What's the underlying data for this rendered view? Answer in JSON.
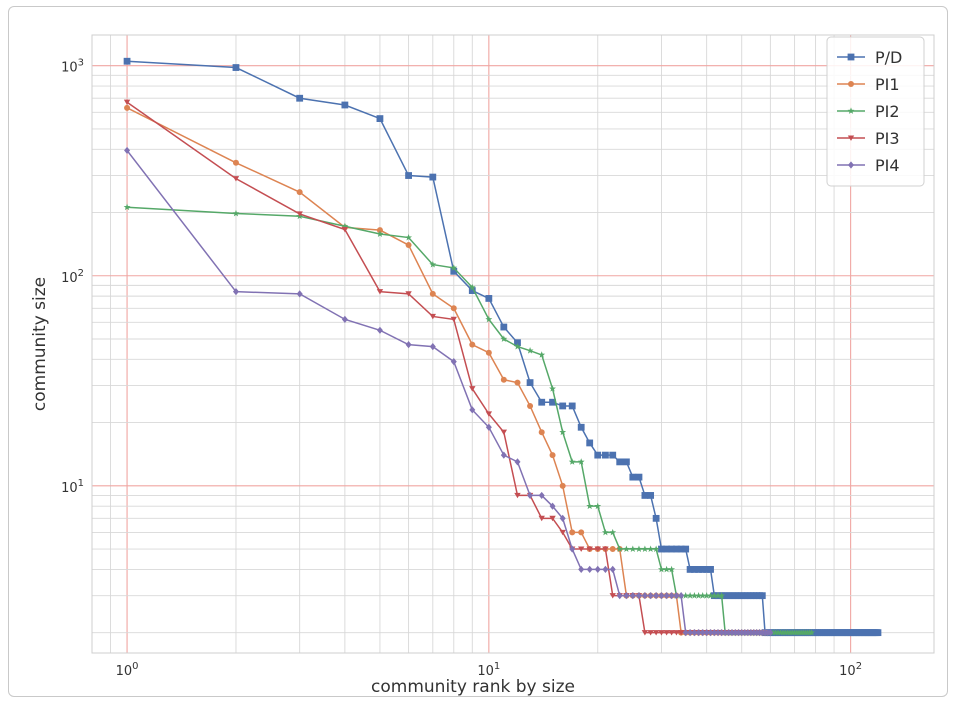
{
  "chart_data": {
    "type": "line",
    "xscale": "log",
    "yscale": "log",
    "xlim": [
      0.8,
      170
    ],
    "ylim": [
      1.6,
      1400
    ],
    "xlabel": "community rank by size",
    "ylabel": "community size",
    "xticks": [
      {
        "value": 1,
        "base": "10",
        "exp": "0"
      },
      {
        "value": 10,
        "base": "10",
        "exp": "1"
      },
      {
        "value": 100,
        "base": "10",
        "exp": "2"
      }
    ],
    "yticks": [
      {
        "value": 10,
        "base": "10",
        "exp": "1"
      },
      {
        "value": 100,
        "base": "10",
        "exp": "2"
      },
      {
        "value": 1000,
        "base": "10",
        "exp": "3"
      }
    ],
    "grid": true,
    "legend_position": "top-right",
    "series": [
      {
        "name": "P/D",
        "color": "#4c72b0",
        "marker": "square",
        "tail_to": 119,
        "sizes": [
          1050,
          980,
          700,
          650,
          560,
          300,
          295,
          105,
          85,
          78,
          57,
          48,
          31,
          25,
          25,
          24,
          24,
          19,
          16,
          14,
          14,
          14,
          13,
          13,
          11,
          11,
          9,
          9,
          7,
          5,
          5,
          5,
          5,
          5,
          5,
          4,
          4,
          4,
          4,
          4,
          4,
          3,
          3,
          3,
          3,
          3,
          3,
          3,
          3,
          3,
          3,
          3,
          3,
          3,
          3,
          3,
          3
        ]
      },
      {
        "name": "PI1",
        "color": "#dd8452",
        "marker": "circle",
        "tail_to": 58,
        "sizes": [
          630,
          345,
          250,
          170,
          165,
          140,
          82,
          70,
          47,
          43,
          32,
          31,
          24,
          18,
          14,
          10,
          6,
          6,
          5,
          5,
          5,
          5,
          5,
          3,
          3,
          3,
          3,
          3,
          3,
          3,
          3,
          3,
          3
        ]
      },
      {
        "name": "PI2",
        "color": "#55a868",
        "marker": "star",
        "tail_to": 78,
        "sizes": [
          212,
          198,
          192,
          172,
          158,
          152,
          113,
          109,
          88,
          62,
          50,
          46,
          44,
          42,
          29,
          18,
          13,
          13,
          8,
          8,
          6,
          6,
          5,
          5,
          5,
          5,
          5,
          5,
          5,
          4,
          4,
          4,
          3,
          3,
          3,
          3,
          3,
          3,
          3,
          3,
          3,
          3,
          3,
          3
        ]
      },
      {
        "name": "PI3",
        "color": "#c44e52",
        "marker": "triangle-down",
        "tail_to": 55,
        "sizes": [
          670,
          290,
          197,
          166,
          84,
          82,
          64,
          62,
          29,
          22,
          18,
          9,
          9,
          7,
          7,
          6,
          5,
          5,
          5,
          5,
          5,
          3,
          3,
          3,
          3,
          3,
          2
        ]
      },
      {
        "name": "PI4",
        "color": "#8172b3",
        "marker": "diamond",
        "tail_to": 60,
        "sizes": [
          395,
          84,
          82,
          62,
          55,
          47,
          46,
          39,
          23,
          19,
          14,
          13,
          9,
          9,
          8,
          7,
          5,
          4,
          4,
          4,
          4,
          4,
          3,
          3,
          3,
          3,
          3,
          3,
          3,
          3,
          3,
          3,
          3,
          3
        ]
      }
    ]
  }
}
